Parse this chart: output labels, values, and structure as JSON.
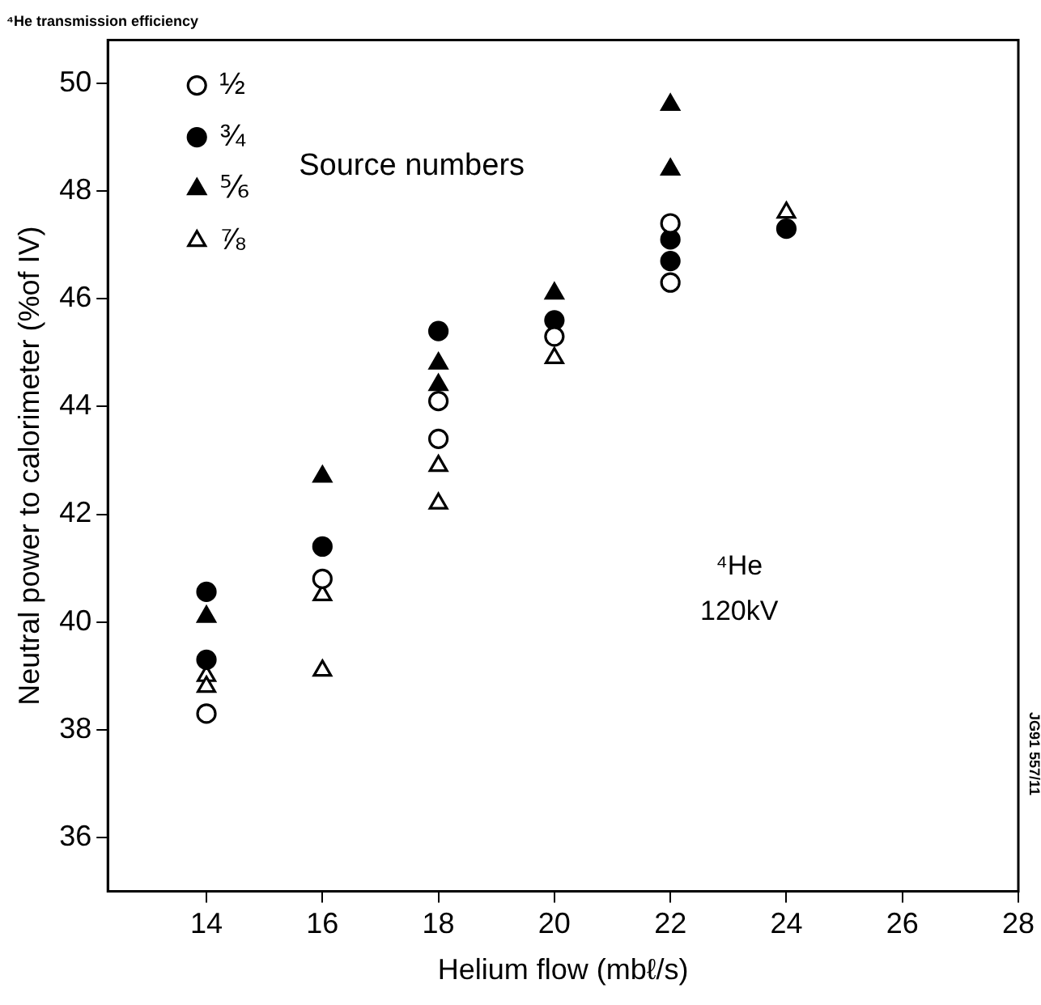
{
  "chart_data": {
    "type": "scatter",
    "title": "⁴He transmission efficiency",
    "xlabel": "Helium flow (mbℓ/s)",
    "ylabel": "Neutral power to calorimeter (%of IV)",
    "xlim": [
      12.3,
      28
    ],
    "xticks": [
      14,
      16,
      18,
      20,
      22,
      24,
      26,
      28
    ],
    "ylim": [
      35,
      50.8
    ],
    "yticks": [
      36,
      38,
      40,
      42,
      44,
      46,
      48,
      50
    ],
    "grid": false,
    "legend": "top left",
    "legend_title": "Source numbers",
    "annotations": [
      "⁴He",
      "120kV",
      "JG91 557/11"
    ],
    "series": [
      {
        "name": "½",
        "color": "#ffffff",
        "marker": "circle",
        "x": [
          14,
          16,
          18,
          18,
          20,
          22,
          22
        ],
        "values": [
          38.3,
          40.8,
          44.1,
          43.4,
          45.3,
          47.4,
          46.3
        ]
      },
      {
        "name": "¾",
        "color": "#000000",
        "marker": "circle",
        "x": [
          14,
          14,
          16,
          18,
          20,
          22,
          22,
          24
        ],
        "values": [
          40.56,
          39.3,
          41.4,
          45.4,
          45.6,
          47.1,
          46.7,
          47.3
        ]
      },
      {
        "name": "⅚",
        "color": "#000000",
        "marker": "triangle",
        "x": [
          14,
          16,
          18,
          18,
          20,
          22,
          22
        ],
        "values": [
          40.1,
          42.7,
          44.8,
          44.4,
          46.1,
          49.6,
          48.4
        ]
      },
      {
        "name": "⅞",
        "color": "#ffffff",
        "marker": "triangle",
        "x": [
          14,
          14,
          16,
          16,
          18,
          18,
          20,
          24
        ],
        "values": [
          39.0,
          38.8,
          40.5,
          39.1,
          42.9,
          42.2,
          44.9,
          47.6
        ]
      }
    ]
  }
}
